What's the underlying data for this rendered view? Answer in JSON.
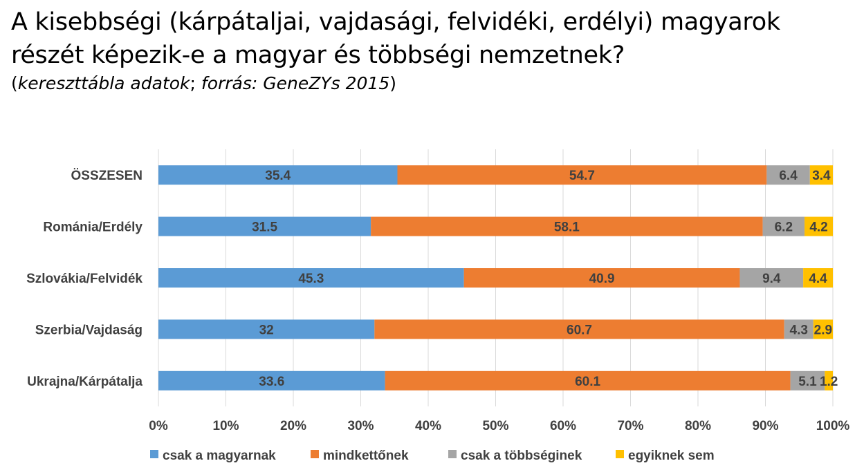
{
  "title": {
    "line1": "A kisebbségi (kárpátaljai, vajdasági, felvidéki, erdélyi) magyarok",
    "line2": "részét képezik-e a magyar és többségi nemzetnek?",
    "subtitle_open": "(",
    "subtitle_italic1": "kereszttábla adatok",
    "subtitle_sep": "; ",
    "subtitle_italic2": "forrás: GeneZYs 2015",
    "subtitle_close": ")"
  },
  "chart_data": {
    "type": "bar",
    "orientation": "horizontal",
    "stacked": "percent",
    "categories": [
      "ÖSSZESEN",
      "Románia/Erdély",
      "Szlovákia/Felvidék",
      "Szerbia/Vajdaság",
      "Ukrajna/Kárpátalja"
    ],
    "series": [
      {
        "name": "csak a magyarnak",
        "color": "#5B9BD5",
        "values": [
          35.4,
          31.5,
          45.3,
          32,
          33.6
        ],
        "labels": [
          "35.4",
          "31.5",
          "45.3",
          "32",
          "33.6"
        ]
      },
      {
        "name": "mindkettőnek",
        "color": "#ED7D31",
        "values": [
          54.7,
          58.1,
          40.9,
          60.7,
          60.1
        ],
        "labels": [
          "54.7",
          "58.1",
          "40.9",
          "60.7",
          "60.1"
        ]
      },
      {
        "name": "csak a többséginek",
        "color": "#A5A5A5",
        "values": [
          6.4,
          6.2,
          9.4,
          4.3,
          5.1
        ],
        "labels": [
          "6.4",
          "6.2",
          "9.4",
          "4.3",
          "5.1"
        ]
      },
      {
        "name": "egyiknek sem",
        "color": "#FFC000",
        "values": [
          3.4,
          4.2,
          4.4,
          2.9,
          1.2
        ],
        "labels": [
          "3.4",
          "4.2",
          "4.4",
          "2.9",
          "1.2"
        ]
      }
    ],
    "xlim": [
      0,
      100
    ],
    "xticks": [
      "0%",
      "10%",
      "20%",
      "30%",
      "40%",
      "50%",
      "60%",
      "70%",
      "80%",
      "90%",
      "100%"
    ],
    "grid": true,
    "legend": "bottom"
  }
}
